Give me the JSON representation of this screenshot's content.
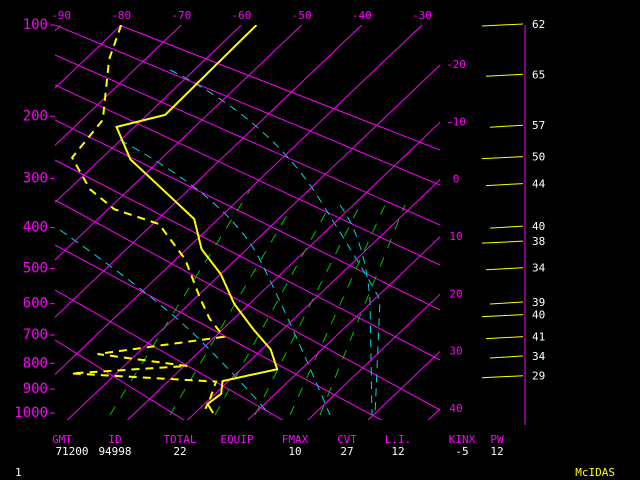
{
  "chart_data": {
    "type": "skew-t",
    "ylim": [
      100,
      1000
    ],
    "yticks": [
      100,
      200,
      300,
      400,
      500,
      600,
      700,
      800,
      900,
      1000
    ],
    "xlim": [
      -91,
      -27
    ],
    "xticks": [
      -90,
      -80,
      -70,
      -60,
      -50,
      -40,
      -30
    ],
    "xticks_right": [
      -20,
      -10,
      0,
      10,
      20,
      30,
      40
    ],
    "grid_color": "#ff00ff",
    "series": [
      {
        "name": "temperature",
        "color": "#ffff00",
        "dashed": false,
        "pressure": [
          100,
          198,
          215,
          266,
          301,
          381,
          451,
          515,
          601,
          680,
          750,
          822,
          868,
          919,
          961,
          1000
        ],
        "values": [
          -57.5,
          -57,
          -63,
          -55,
          -48,
          -34,
          -27.5,
          -20,
          -12.5,
          -5,
          1.5,
          6,
          -1,
          1,
          0.5,
          3
        ]
      },
      {
        "name": "dewpoint",
        "color": "#ffff00",
        "dashed": true,
        "pressure": [
          100,
          132,
          205,
          263,
          320,
          360,
          392,
          476,
          586,
          647,
          706,
          766,
          810,
          838,
          870,
          939,
          982
        ],
        "values": [
          -80,
          -76,
          -66.5,
          -65,
          -56.5,
          -49,
          -39,
          -28.5,
          -19,
          -14,
          -8.5,
          -26.5,
          -9.5,
          -27.5,
          -2,
          0,
          1
        ]
      }
    ],
    "wind": {
      "color": "#ffff00",
      "pressure": [
        100,
        149,
        214,
        263,
        311,
        399,
        434,
        501,
        598,
        637,
        709,
        777,
        851
      ],
      "values": [
        62,
        65,
        57,
        50,
        44,
        40,
        38,
        34,
        39,
        40,
        41,
        34,
        29
      ]
    }
  },
  "table": {
    "columns": [
      {
        "header": "GMT",
        "value": "71200"
      },
      {
        "header": "ID",
        "value": "94998"
      },
      {
        "header": "TOTAL",
        "value": "22"
      },
      {
        "header": "EQUIP"
      },
      {
        "header": "FMAX",
        "value": "10"
      },
      {
        "header": "CVT",
        "value": "27"
      },
      {
        "header": "L.I.",
        "value": "12"
      },
      {
        "header": "KINX",
        "value": "-5"
      },
      {
        "header": "PW",
        "value": "12"
      }
    ]
  },
  "footer": {
    "page": "1",
    "brand": "McIDAS"
  }
}
